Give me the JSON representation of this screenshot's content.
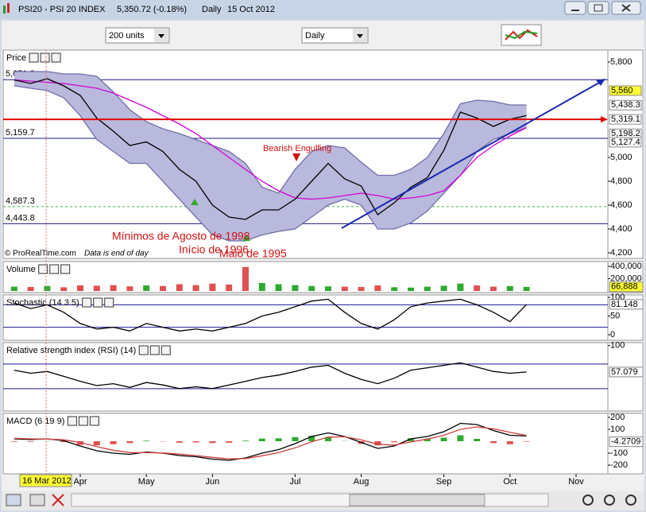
{
  "window": {
    "title": "PSI20 - PSI 20 INDEX",
    "quote": "5,350.72 (-0.18%)",
    "period": "Daily",
    "date": "15 Oct 2012"
  },
  "toolbar": {
    "units": "200 units",
    "period": "Daily"
  },
  "cursor_date": "16 Mar 2012",
  "annotations": [
    "Bearish Engulfing",
    "Mínimos de Agosto de 1998",
    "Início de 1996",
    "Maio de 1995"
  ],
  "footer": {
    "source": "© ProRealTime.com",
    "note": "Data is end of day"
  },
  "chart_data": [
    {
      "type": "line",
      "title": "Price",
      "band_fill": "#b9b9dd",
      "categories": [
        null,
        null,
        null,
        null,
        "Apr",
        null,
        null,
        null,
        "May",
        null,
        null,
        null,
        "Jun",
        null,
        null,
        null,
        null,
        "Jul",
        null,
        null,
        null,
        "Aug",
        null,
        null,
        null,
        null,
        "Sep",
        null,
        null,
        null,
        "Oct",
        null,
        null,
        null,
        "Nov",
        null
      ],
      "series": [
        {
          "color": "#6f6fa8",
          "values": [
            5720,
            5720,
            5720,
            5700,
            5700,
            5680,
            5550,
            5400,
            5300,
            5240,
            5200,
            5150,
            5100,
            5050,
            4950,
            4750,
            4700,
            4900,
            5050,
            5100,
            5080,
            4960,
            4850,
            4850,
            4900,
            5000,
            5200,
            5450,
            5480,
            5470,
            5440,
            5440,
            null,
            null,
            null,
            null
          ]
        },
        {
          "color": "#6f6fa8",
          "values": [
            5600,
            5580,
            5560,
            5500,
            5350,
            5150,
            5050,
            4950,
            4950,
            4800,
            4650,
            4500,
            4350,
            4300,
            4300,
            4350,
            4380,
            4400,
            4500,
            4600,
            4650,
            4600,
            4400,
            4400,
            4450,
            4550,
            4700,
            4850,
            5050,
            5150,
            5200,
            5250,
            null,
            null,
            null,
            null
          ]
        },
        {
          "color": "#d400d4",
          "values": [
            5650,
            5640,
            5630,
            5620,
            5600,
            5580,
            5540,
            5480,
            5420,
            5350,
            5280,
            5200,
            5100,
            5000,
            4900,
            4800,
            4720,
            4660,
            4650,
            4660,
            4680,
            4700,
            4680,
            4650,
            4660,
            4680,
            4720,
            4850,
            5000,
            5100,
            5180,
            5250,
            null,
            null,
            null,
            null
          ]
        },
        {
          "color": "#000000",
          "values": [
            5650,
            5620,
            5660,
            5600,
            5520,
            5330,
            5220,
            5100,
            5130,
            5050,
            4900,
            4800,
            4600,
            4500,
            4480,
            4560,
            4560,
            4650,
            4800,
            4950,
            4820,
            4760,
            4520,
            4620,
            4750,
            4830,
            5060,
            5380,
            5330,
            5260,
            5320,
            5350.72,
            null,
            null,
            null,
            null
          ]
        }
      ],
      "ylim": [
        4200,
        5800
      ],
      "yticks": [
        {
          "value": 5800,
          "label": "5,800"
        },
        {
          "value": 5000,
          "label": "5,000"
        },
        {
          "value": 4800,
          "label": "4,800"
        },
        {
          "value": 4600,
          "label": "4,600"
        },
        {
          "value": 4400,
          "label": "4,400"
        },
        {
          "value": 4200,
          "label": "4,200"
        }
      ],
      "levels": [
        {
          "value": 5651.3,
          "label": "5,651.3",
          "color": "#1a1a8c"
        },
        {
          "value": 5159.7,
          "label": "5,159.7",
          "color": "#1a1a8c"
        },
        {
          "value": 4587.3,
          "label": "4,587.3",
          "color": "#3cb33c",
          "dashed": true
        },
        {
          "value": 4443.8,
          "label": "4,443.8",
          "color": "#1a1a8c"
        }
      ],
      "right_labels": [
        {
          "value": 5560,
          "label": "5,560",
          "color": "#000000",
          "background": "#ffff33"
        },
        {
          "value": 5438.3,
          "label": "5,438.3",
          "color": "#000000",
          "background": "#ffffff"
        },
        {
          "value": 5319.1,
          "label": "5,319.1",
          "color": "#000000",
          "background": "#ffffff",
          "line": "#e00000"
        },
        {
          "value": 5198.2,
          "label": "5,198.2",
          "color": "#000000",
          "background": "#ffffff"
        },
        {
          "value": 5127.4,
          "label": "5,127.4",
          "color": "#3cb33c",
          "background": "#ffffff"
        }
      ]
    },
    {
      "type": "bar",
      "title": "Volume",
      "up_color": "#2eaa2e",
      "down_color": "#e05050",
      "values": [
        70000,
        65000,
        80000,
        60000,
        90000,
        85000,
        95000,
        75000,
        90000,
        80000,
        110000,
        95000,
        120000,
        105000,
        390000,
        130000,
        110000,
        95000,
        80000,
        75000,
        70000,
        65000,
        90000,
        60000,
        55000,
        70000,
        85000,
        120000,
        90000,
        70000,
        80000,
        66888,
        null,
        null,
        null,
        null
      ],
      "ylim": [
        0,
        400000
      ],
      "yticks": [
        {
          "value": 400000,
          "label": "400,000"
        },
        {
          "value": 200000,
          "label": "200,000"
        }
      ],
      "current": {
        "value": 66888,
        "label": "66,888",
        "background": "#ffff33"
      }
    },
    {
      "type": "line",
      "title": "Stochastic (14 3 5)",
      "series": [
        {
          "color": "#000000",
          "values": [
            85,
            70,
            80,
            60,
            30,
            15,
            20,
            10,
            30,
            20,
            10,
            15,
            10,
            20,
            30,
            50,
            60,
            75,
            90,
            95,
            60,
            30,
            15,
            40,
            75,
            85,
            90,
            95,
            80,
            60,
            35,
            81.148,
            null,
            null,
            null,
            null
          ]
        }
      ],
      "ylim": [
        0,
        100
      ],
      "yticks": [
        100,
        50,
        0
      ],
      "levels": [
        {
          "value": 80,
          "color": "#1a1a8c"
        },
        {
          "value": 20,
          "color": "#1a1a8c"
        }
      ],
      "current": 81.148
    },
    {
      "type": "line",
      "title": "Relative strength index (RSI) (14)",
      "series": [
        {
          "color": "#000000",
          "values": [
            60,
            55,
            58,
            50,
            42,
            35,
            38,
            32,
            40,
            36,
            30,
            33,
            30,
            36,
            42,
            48,
            52,
            58,
            65,
            68,
            55,
            45,
            38,
            47,
            60,
            64,
            68,
            72,
            65,
            58,
            55,
            57.079,
            null,
            null,
            null,
            null
          ]
        }
      ],
      "ylim": [
        0,
        100
      ],
      "yticks": [
        100
      ],
      "levels": [
        {
          "value": 70,
          "color": "#1a1a8c"
        },
        {
          "value": 30,
          "color": "#1a1a8c"
        }
      ],
      "current": 57.079
    },
    {
      "type": "line",
      "title": "MACD (6 19 9)",
      "series": [
        {
          "color": "#000000",
          "values": [
            20,
            15,
            20,
            5,
            -40,
            -80,
            -100,
            -110,
            -90,
            -100,
            -120,
            -130,
            -150,
            -160,
            -140,
            -100,
            -70,
            -20,
            40,
            70,
            40,
            -10,
            -60,
            -40,
            20,
            40,
            80,
            150,
            140,
            90,
            50,
            43.817,
            null,
            null,
            null,
            null
          ]
        },
        {
          "color": "#d04040",
          "values": [
            25,
            20,
            18,
            12,
            -10,
            -45,
            -75,
            -95,
            -95,
            -98,
            -108,
            -120,
            -135,
            -148,
            -145,
            -122,
            -95,
            -55,
            -5,
            35,
            38,
            12,
            -25,
            -32,
            -5,
            18,
            50,
            100,
            120,
            105,
            75,
            48.088,
            null,
            null,
            null,
            null
          ]
        }
      ],
      "histogram": {
        "up_color": "#2eaa2e",
        "down_color": "#e05050",
        "values": [
          -5,
          -5,
          2,
          -7,
          -30,
          -35,
          -25,
          -15,
          5,
          -2,
          -12,
          -10,
          -15,
          -12,
          5,
          22,
          25,
          35,
          45,
          35,
          2,
          -22,
          -35,
          -8,
          25,
          22,
          30,
          50,
          20,
          -15,
          -25,
          -4.2709,
          null,
          null,
          null,
          null
        ]
      },
      "ylim": [
        -200,
        200
      ],
      "yticks": [
        200,
        100,
        -100,
        -200
      ],
      "current": -4.2709,
      "current_color": "#e00000"
    }
  ]
}
